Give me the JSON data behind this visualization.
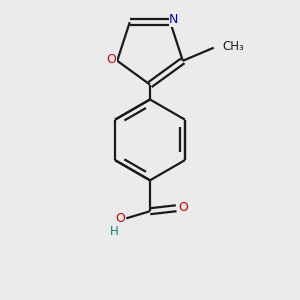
{
  "background_color": "#ebebeb",
  "bond_color": "#1a1a1a",
  "N_color": "#0000cc",
  "O_color": "#cc0000",
  "OH_color": "#008080",
  "text_color": "#1a1a1a",
  "figsize": [
    3.0,
    3.0
  ],
  "dpi": 100,
  "bond_lw": 1.6,
  "xlim": [
    -1.8,
    1.8
  ],
  "ylim": [
    -2.8,
    2.2
  ]
}
